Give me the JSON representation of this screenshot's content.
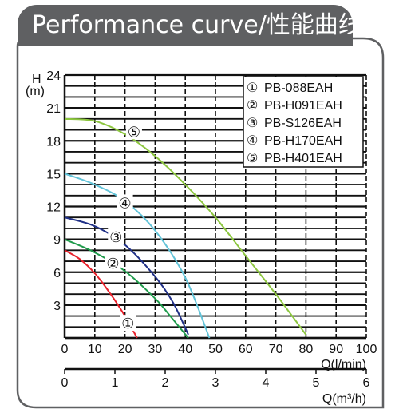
{
  "header": {
    "title": "Performance curve/性能曲线"
  },
  "chart_data": {
    "type": "line",
    "title": "",
    "ylabel": "H\n(m)",
    "ylabel_top": "H",
    "ylabel_unit": "(m)",
    "xlabel": "Q(l/min)",
    "xlabel2": "Q(m³/h)",
    "ylim": [
      0,
      24
    ],
    "xlim": [
      0,
      100
    ],
    "xlim2": [
      0,
      6
    ],
    "y_ticks": [
      3,
      6,
      9,
      12,
      15,
      18,
      21,
      24
    ],
    "x_ticks": [
      0,
      10,
      20,
      30,
      40,
      50,
      60,
      70,
      80,
      90,
      100
    ],
    "x2_ticks": [
      0,
      1,
      2,
      3,
      4,
      5,
      6
    ],
    "grid": true,
    "legend_position": "top-right",
    "series": [
      {
        "name": "PB-088EAH",
        "marker": "①",
        "color": "#e8202a",
        "x": [
          0,
          5,
          10,
          15,
          20,
          24
        ],
        "y": [
          8,
          7.2,
          5.9,
          4.1,
          2,
          0
        ]
      },
      {
        "name": "PB-H091EAH",
        "marker": "②",
        "color": "#1e9a4a",
        "x": [
          0,
          10,
          20,
          30,
          35,
          41
        ],
        "y": [
          9,
          7.8,
          6.1,
          3.6,
          2,
          0
        ]
      },
      {
        "name": "PB-S126EAH",
        "marker": "③",
        "color": "#1f2f86",
        "x": [
          0,
          10,
          20,
          30,
          36,
          41
        ],
        "y": [
          11,
          10.2,
          8.5,
          5.6,
          3.2,
          0.3
        ]
      },
      {
        "name": "PB-H170EAH",
        "marker": "④",
        "color": "#62c3d8",
        "x": [
          0,
          10,
          20,
          30,
          40,
          48
        ],
        "y": [
          15,
          14,
          12.5,
          9.8,
          5.5,
          0
        ]
      },
      {
        "name": "PB-H401EAH",
        "marker": "⑤",
        "color": "#8cc63f",
        "x": [
          0,
          10,
          20,
          30,
          40,
          50,
          60,
          70,
          80
        ],
        "y": [
          20,
          19.8,
          18.6,
          16.6,
          14,
          11,
          7.5,
          4,
          0.3
        ]
      }
    ],
    "curve_labels": [
      {
        "text": "①",
        "x": 21,
        "y": 1.3
      },
      {
        "text": "②",
        "x": 16,
        "y": 6.8
      },
      {
        "text": "③",
        "x": 17,
        "y": 9.2
      },
      {
        "text": "④",
        "x": 20,
        "y": 12.3
      },
      {
        "text": "⑤",
        "x": 23,
        "y": 18.8
      }
    ]
  }
}
